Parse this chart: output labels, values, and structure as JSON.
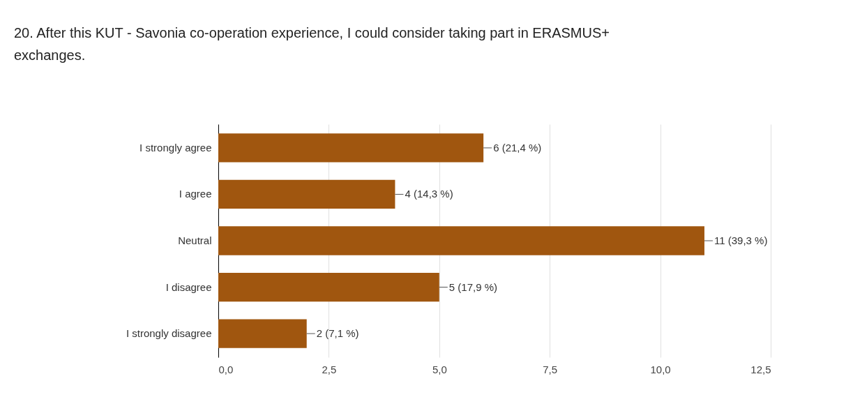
{
  "chart_data": {
    "type": "bar",
    "orientation": "horizontal",
    "title": "20. After this KUT - Savonia co-operation experience, I could consider taking part in ERASMUS+ exchanges.",
    "categories": [
      "I strongly agree",
      "I agree",
      "Neutral",
      "I disagree",
      "I strongly disagree"
    ],
    "values": [
      6,
      4,
      11,
      5,
      2
    ],
    "value_labels": [
      "6 (21,4 %)",
      "4 (14,3 %)",
      "11 (39,3 %)",
      "5 (17,9 %)",
      "2 (7,1 %)"
    ],
    "color": "#a0560f",
    "xlim": [
      0,
      12.5
    ],
    "xticks": [
      {
        "value": 0,
        "label": "0,0"
      },
      {
        "value": 2.5,
        "label": "2,5"
      },
      {
        "value": 5,
        "label": "5,0"
      },
      {
        "value": 7.5,
        "label": "7,5"
      },
      {
        "value": 10,
        "label": "10,0"
      },
      {
        "value": 12.5,
        "label": "12,5"
      }
    ],
    "grid": "x"
  }
}
